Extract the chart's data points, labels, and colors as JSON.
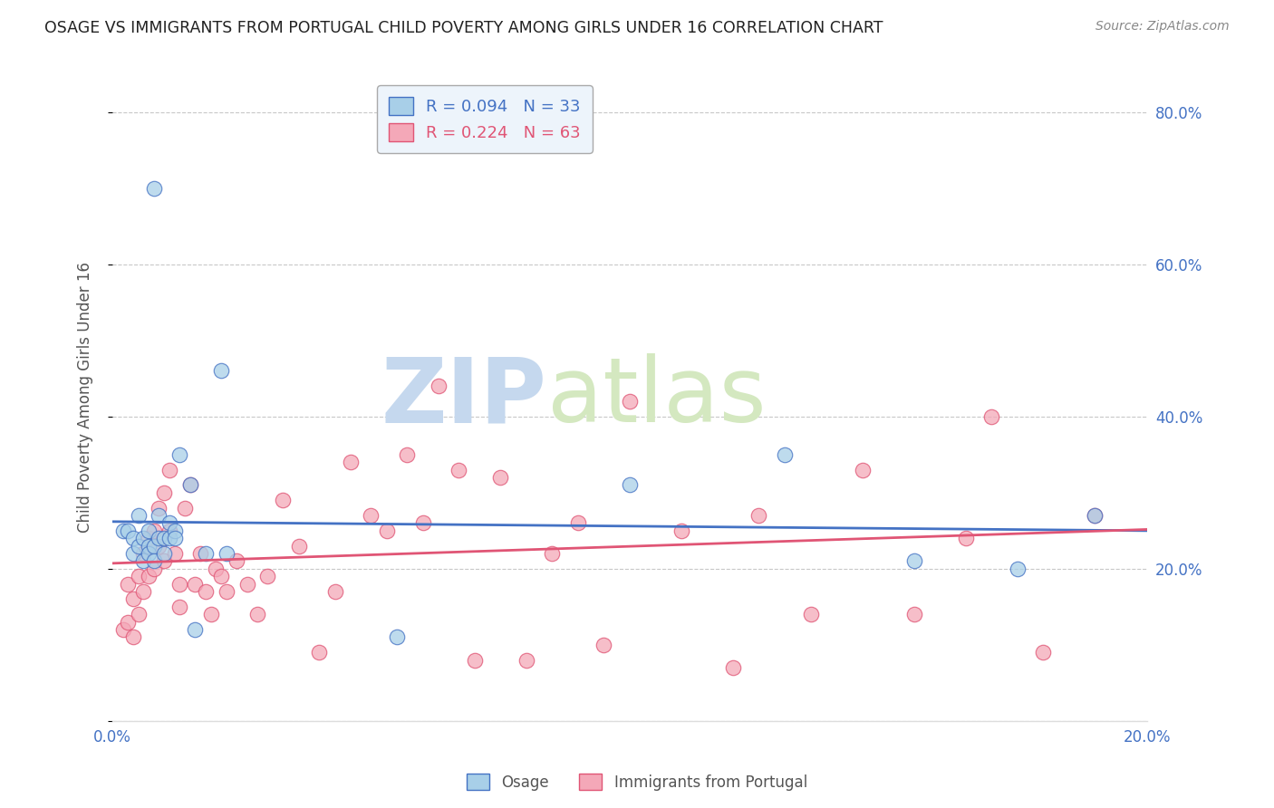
{
  "title": "OSAGE VS IMMIGRANTS FROM PORTUGAL CHILD POVERTY AMONG GIRLS UNDER 16 CORRELATION CHART",
  "source": "Source: ZipAtlas.com",
  "ylabel": "Child Poverty Among Girls Under 16",
  "xlim": [
    0.0,
    0.2
  ],
  "ylim": [
    0.0,
    0.85
  ],
  "yticks": [
    0.0,
    0.2,
    0.4,
    0.6,
    0.8
  ],
  "xticks": [
    0.0,
    0.05,
    0.1,
    0.15,
    0.2
  ],
  "osage_R": "0.094",
  "osage_N": "33",
  "portugal_R": "0.224",
  "portugal_N": "63",
  "osage_color": "#a8cfe8",
  "portugal_color": "#f4a8b8",
  "osage_line_color": "#4472c4",
  "portugal_line_color": "#e05575",
  "osage_x": [
    0.002,
    0.003,
    0.004,
    0.004,
    0.005,
    0.005,
    0.006,
    0.006,
    0.007,
    0.007,
    0.007,
    0.008,
    0.008,
    0.009,
    0.009,
    0.01,
    0.01,
    0.011,
    0.011,
    0.012,
    0.012,
    0.013,
    0.015,
    0.016,
    0.018,
    0.021,
    0.022,
    0.055,
    0.1,
    0.13,
    0.155,
    0.175,
    0.19
  ],
  "osage_y": [
    0.25,
    0.25,
    0.24,
    0.22,
    0.27,
    0.23,
    0.24,
    0.21,
    0.25,
    0.23,
    0.22,
    0.23,
    0.21,
    0.27,
    0.24,
    0.24,
    0.22,
    0.26,
    0.24,
    0.25,
    0.24,
    0.35,
    0.31,
    0.12,
    0.22,
    0.46,
    0.22,
    0.11,
    0.31,
    0.35,
    0.21,
    0.2,
    0.27
  ],
  "osage_outlier_x": [
    0.008
  ],
  "osage_outlier_y": [
    0.7
  ],
  "portugal_x": [
    0.002,
    0.003,
    0.003,
    0.004,
    0.004,
    0.005,
    0.005,
    0.006,
    0.006,
    0.007,
    0.007,
    0.008,
    0.008,
    0.009,
    0.009,
    0.01,
    0.01,
    0.011,
    0.011,
    0.012,
    0.013,
    0.013,
    0.014,
    0.015,
    0.016,
    0.017,
    0.018,
    0.019,
    0.02,
    0.021,
    0.022,
    0.024,
    0.026,
    0.028,
    0.03,
    0.033,
    0.036,
    0.04,
    0.043,
    0.046,
    0.05,
    0.053,
    0.057,
    0.06,
    0.063,
    0.067,
    0.07,
    0.075,
    0.08,
    0.085,
    0.09,
    0.095,
    0.1,
    0.11,
    0.12,
    0.125,
    0.135,
    0.145,
    0.155,
    0.165,
    0.17,
    0.18,
    0.19
  ],
  "portugal_y": [
    0.12,
    0.18,
    0.13,
    0.16,
    0.11,
    0.19,
    0.14,
    0.22,
    0.17,
    0.24,
    0.19,
    0.25,
    0.2,
    0.28,
    0.23,
    0.3,
    0.21,
    0.33,
    0.25,
    0.22,
    0.18,
    0.15,
    0.28,
    0.31,
    0.18,
    0.22,
    0.17,
    0.14,
    0.2,
    0.19,
    0.17,
    0.21,
    0.18,
    0.14,
    0.19,
    0.29,
    0.23,
    0.09,
    0.17,
    0.34,
    0.27,
    0.25,
    0.35,
    0.26,
    0.44,
    0.33,
    0.08,
    0.32,
    0.08,
    0.22,
    0.26,
    0.1,
    0.42,
    0.25,
    0.07,
    0.27,
    0.14,
    0.33,
    0.14,
    0.24,
    0.4,
    0.09,
    0.27
  ],
  "background_color": "#ffffff",
  "grid_color": "#c8c8c8",
  "title_color": "#222222",
  "axis_label_color": "#555555",
  "right_axis_color": "#4472c4",
  "watermark_zip_color": "#c5d8ee",
  "watermark_atlas_color": "#d4e8c0",
  "legend_box_color": "#edf4fb",
  "legend_border_color": "#aaaaaa"
}
